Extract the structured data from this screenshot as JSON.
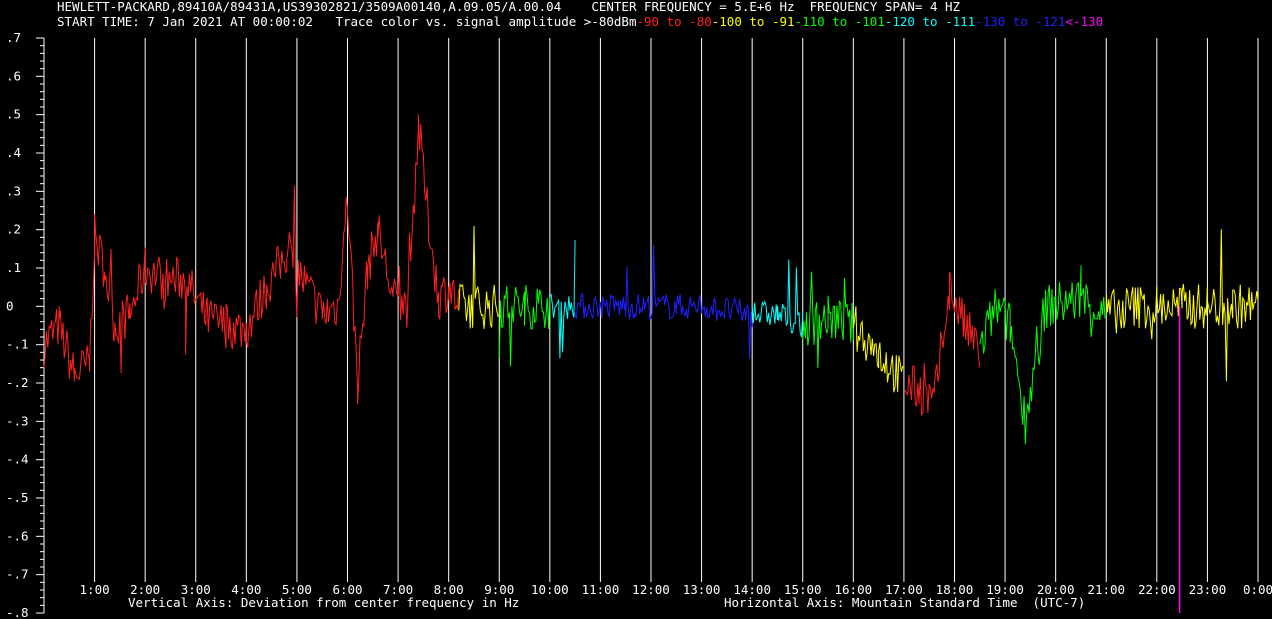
{
  "header": {
    "line1": "HEWLETT-PACKARD,89410A/89431A,US39302821/3509A00140,A.09.05/A.00.04    CENTER FREQUENCY = 5.E+6 Hz  FREQUENCY SPAN= 4 HZ",
    "start": "START TIME: 7 Jan 2021 AT 00:00:02   Trace color vs. signal amplitude ",
    "legend": [
      {
        "text": ">-80dBm",
        "color": "#ffffff"
      },
      {
        "text": "-90 to -80",
        "color": "#ff2020"
      },
      {
        "text": "-100 to -91",
        "color": "#ffff00"
      },
      {
        "text": "-110 to -101",
        "color": "#00ff00"
      },
      {
        "text": "-120 to -111",
        "color": "#00ffff"
      },
      {
        "text": "-130 to -121",
        "color": "#2020ff"
      },
      {
        "text": "<-130",
        "color": "#ff00ff"
      }
    ]
  },
  "chart_data": {
    "type": "line",
    "xlabel": "Horizontal Axis: Mountain Standard Time  (UTC-7)",
    "ylabel": "Vertical Axis: Deviation from center frequency in Hz",
    "xlim": [
      0,
      24
    ],
    "ylim": [
      -0.8,
      0.7
    ],
    "x_ticks": [
      "1:00",
      "2:00",
      "3:00",
      "4:00",
      "5:00",
      "6:00",
      "7:00",
      "8:00",
      "9:00",
      "10:00",
      "11:00",
      "12:00",
      "13:00",
      "14:00",
      "15:00",
      "16:00",
      "17:00",
      "18:00",
      "19:00",
      "20:00",
      "21:00",
      "22:00",
      "23:00",
      "0:00"
    ],
    "y_ticks": [
      ".7",
      ".6",
      ".5",
      ".4",
      ".3",
      ".2",
      ".1",
      "0",
      "-.1",
      "-.2",
      "-.3",
      "-.4",
      "-.5",
      "-.6",
      "-.7",
      "-.8"
    ],
    "y_tick_values": [
      0.7,
      0.6,
      0.5,
      0.4,
      0.3,
      0.2,
      0.1,
      0,
      -0.1,
      -0.2,
      -0.3,
      -0.4,
      -0.5,
      -0.6,
      -0.7,
      -0.8
    ],
    "grid": "vertical lines at each hour",
    "series": [
      {
        "band": "-90 to -80",
        "color": "#ff2020",
        "points": [
          [
            0.0,
            -0.1
          ],
          [
            0.3,
            -0.05
          ],
          [
            0.6,
            -0.18
          ],
          [
            0.9,
            -0.15
          ],
          [
            1.0,
            0.18
          ],
          [
            1.2,
            0.1
          ],
          [
            1.4,
            -0.05
          ],
          [
            1.7,
            -0.02
          ],
          [
            2.0,
            0.1
          ],
          [
            2.4,
            0.07
          ],
          [
            2.8,
            0.07
          ],
          [
            3.2,
            -0.03
          ],
          [
            3.6,
            -0.05
          ],
          [
            4.0,
            -0.06
          ],
          [
            4.4,
            0.05
          ],
          [
            4.8,
            0.14
          ],
          [
            5.2,
            0.05
          ],
          [
            5.5,
            -0.02
          ],
          [
            5.8,
            0.0
          ],
          [
            6.0,
            0.28
          ],
          [
            6.2,
            -0.2
          ],
          [
            6.4,
            0.1
          ],
          [
            6.6,
            0.2
          ],
          [
            6.9,
            0.02
          ],
          [
            7.2,
            0.0
          ],
          [
            7.4,
            0.48
          ],
          [
            7.6,
            0.22
          ],
          [
            7.8,
            0.02
          ],
          [
            8.0,
            0.05
          ],
          [
            8.2,
            0.0
          ]
        ]
      },
      {
        "band": "-100 to -91",
        "color": "#ffff00",
        "points": [
          [
            8.2,
            0.0
          ],
          [
            8.6,
            0.0
          ],
          [
            9.0,
            0.0
          ]
        ]
      },
      {
        "band": "-110 to -101",
        "color": "#00ff00",
        "points": [
          [
            9.0,
            0.0
          ],
          [
            9.5,
            0.0
          ],
          [
            10.0,
            0.0
          ]
        ]
      },
      {
        "band": "-120 to -111",
        "color": "#00ffff",
        "points": [
          [
            10.0,
            0.0
          ],
          [
            10.5,
            0.0
          ]
        ]
      },
      {
        "band": "-130 to -121",
        "color": "#2020ff",
        "points": [
          [
            10.5,
            0.0
          ],
          [
            11.5,
            0.0
          ],
          [
            12.5,
            0.0
          ],
          [
            13.0,
            0.0
          ],
          [
            14.0,
            -0.02
          ]
        ]
      },
      {
        "band": "-120 to -111",
        "color": "#00ffff",
        "points": [
          [
            14.0,
            -0.02
          ],
          [
            14.5,
            -0.02
          ],
          [
            15.0,
            -0.05
          ]
        ]
      },
      {
        "band": "-110 to -101",
        "color": "#00ff00",
        "points": [
          [
            15.0,
            -0.05
          ],
          [
            15.5,
            -0.03
          ],
          [
            16.0,
            -0.05
          ]
        ]
      },
      {
        "band": "-100 to -91",
        "color": "#ffff00",
        "points": [
          [
            16.0,
            -0.05
          ],
          [
            16.5,
            -0.12
          ],
          [
            17.0,
            -0.2
          ]
        ]
      },
      {
        "band": "-90 to -80",
        "color": "#ff2020",
        "points": [
          [
            17.0,
            -0.2
          ],
          [
            17.3,
            -0.22
          ],
          [
            17.6,
            -0.25
          ],
          [
            17.9,
            0.05
          ],
          [
            18.2,
            -0.05
          ],
          [
            18.5,
            -0.12
          ]
        ]
      },
      {
        "band": "-110 to -101",
        "color": "#00ff00",
        "points": [
          [
            18.5,
            -0.12
          ],
          [
            18.8,
            0.0
          ],
          [
            19.1,
            -0.05
          ],
          [
            19.4,
            -0.3
          ],
          [
            19.8,
            0.0
          ],
          [
            20.5,
            0.02
          ],
          [
            21.0,
            -0.02
          ]
        ]
      },
      {
        "band": "-100 to -91",
        "color": "#ffff00",
        "points": [
          [
            21.0,
            -0.02
          ],
          [
            21.5,
            0.0
          ],
          [
            22.0,
            0.0
          ],
          [
            22.5,
            0.0
          ],
          [
            23.0,
            0.0
          ],
          [
            23.5,
            0.0
          ],
          [
            24.0,
            0.0
          ]
        ]
      }
    ],
    "markers": [
      {
        "x": 22.45,
        "color": "#ff00ff"
      }
    ]
  }
}
